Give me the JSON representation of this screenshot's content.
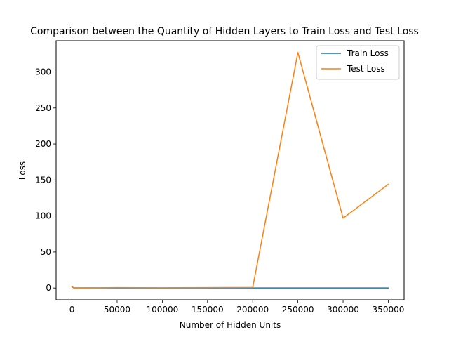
{
  "chart_data": {
    "type": "line",
    "title": "Comparison between the Quantity of Hidden Layers to Train Loss and Test Loss",
    "xlabel": "Number of Hidden Units",
    "ylabel": "Loss",
    "xlim": [
      -17500,
      367500
    ],
    "ylim": [
      -16.4,
      343.4
    ],
    "xticks": [
      0,
      50000,
      100000,
      150000,
      200000,
      250000,
      300000,
      350000
    ],
    "yticks": [
      0,
      50,
      100,
      150,
      200,
      250,
      300
    ],
    "grid": false,
    "legend_position": "top-right",
    "series": [
      {
        "name": "Train Loss",
        "color": "#1f77b4",
        "x": [
          0,
          2000,
          50000,
          100000,
          150000,
          200000,
          250000,
          300000,
          350000
        ],
        "y": [
          1.5,
          0.3,
          0.1,
          0.05,
          0.05,
          0.05,
          0.05,
          0.05,
          0.05
        ]
      },
      {
        "name": "Test Loss",
        "color": "#ff7f0e",
        "x": [
          0,
          2000,
          50000,
          100000,
          150000,
          200000,
          250000,
          300000,
          350000
        ],
        "y": [
          2.5,
          0.0,
          0.5,
          0.3,
          0.5,
          0.8,
          327,
          97,
          144
        ]
      }
    ]
  }
}
